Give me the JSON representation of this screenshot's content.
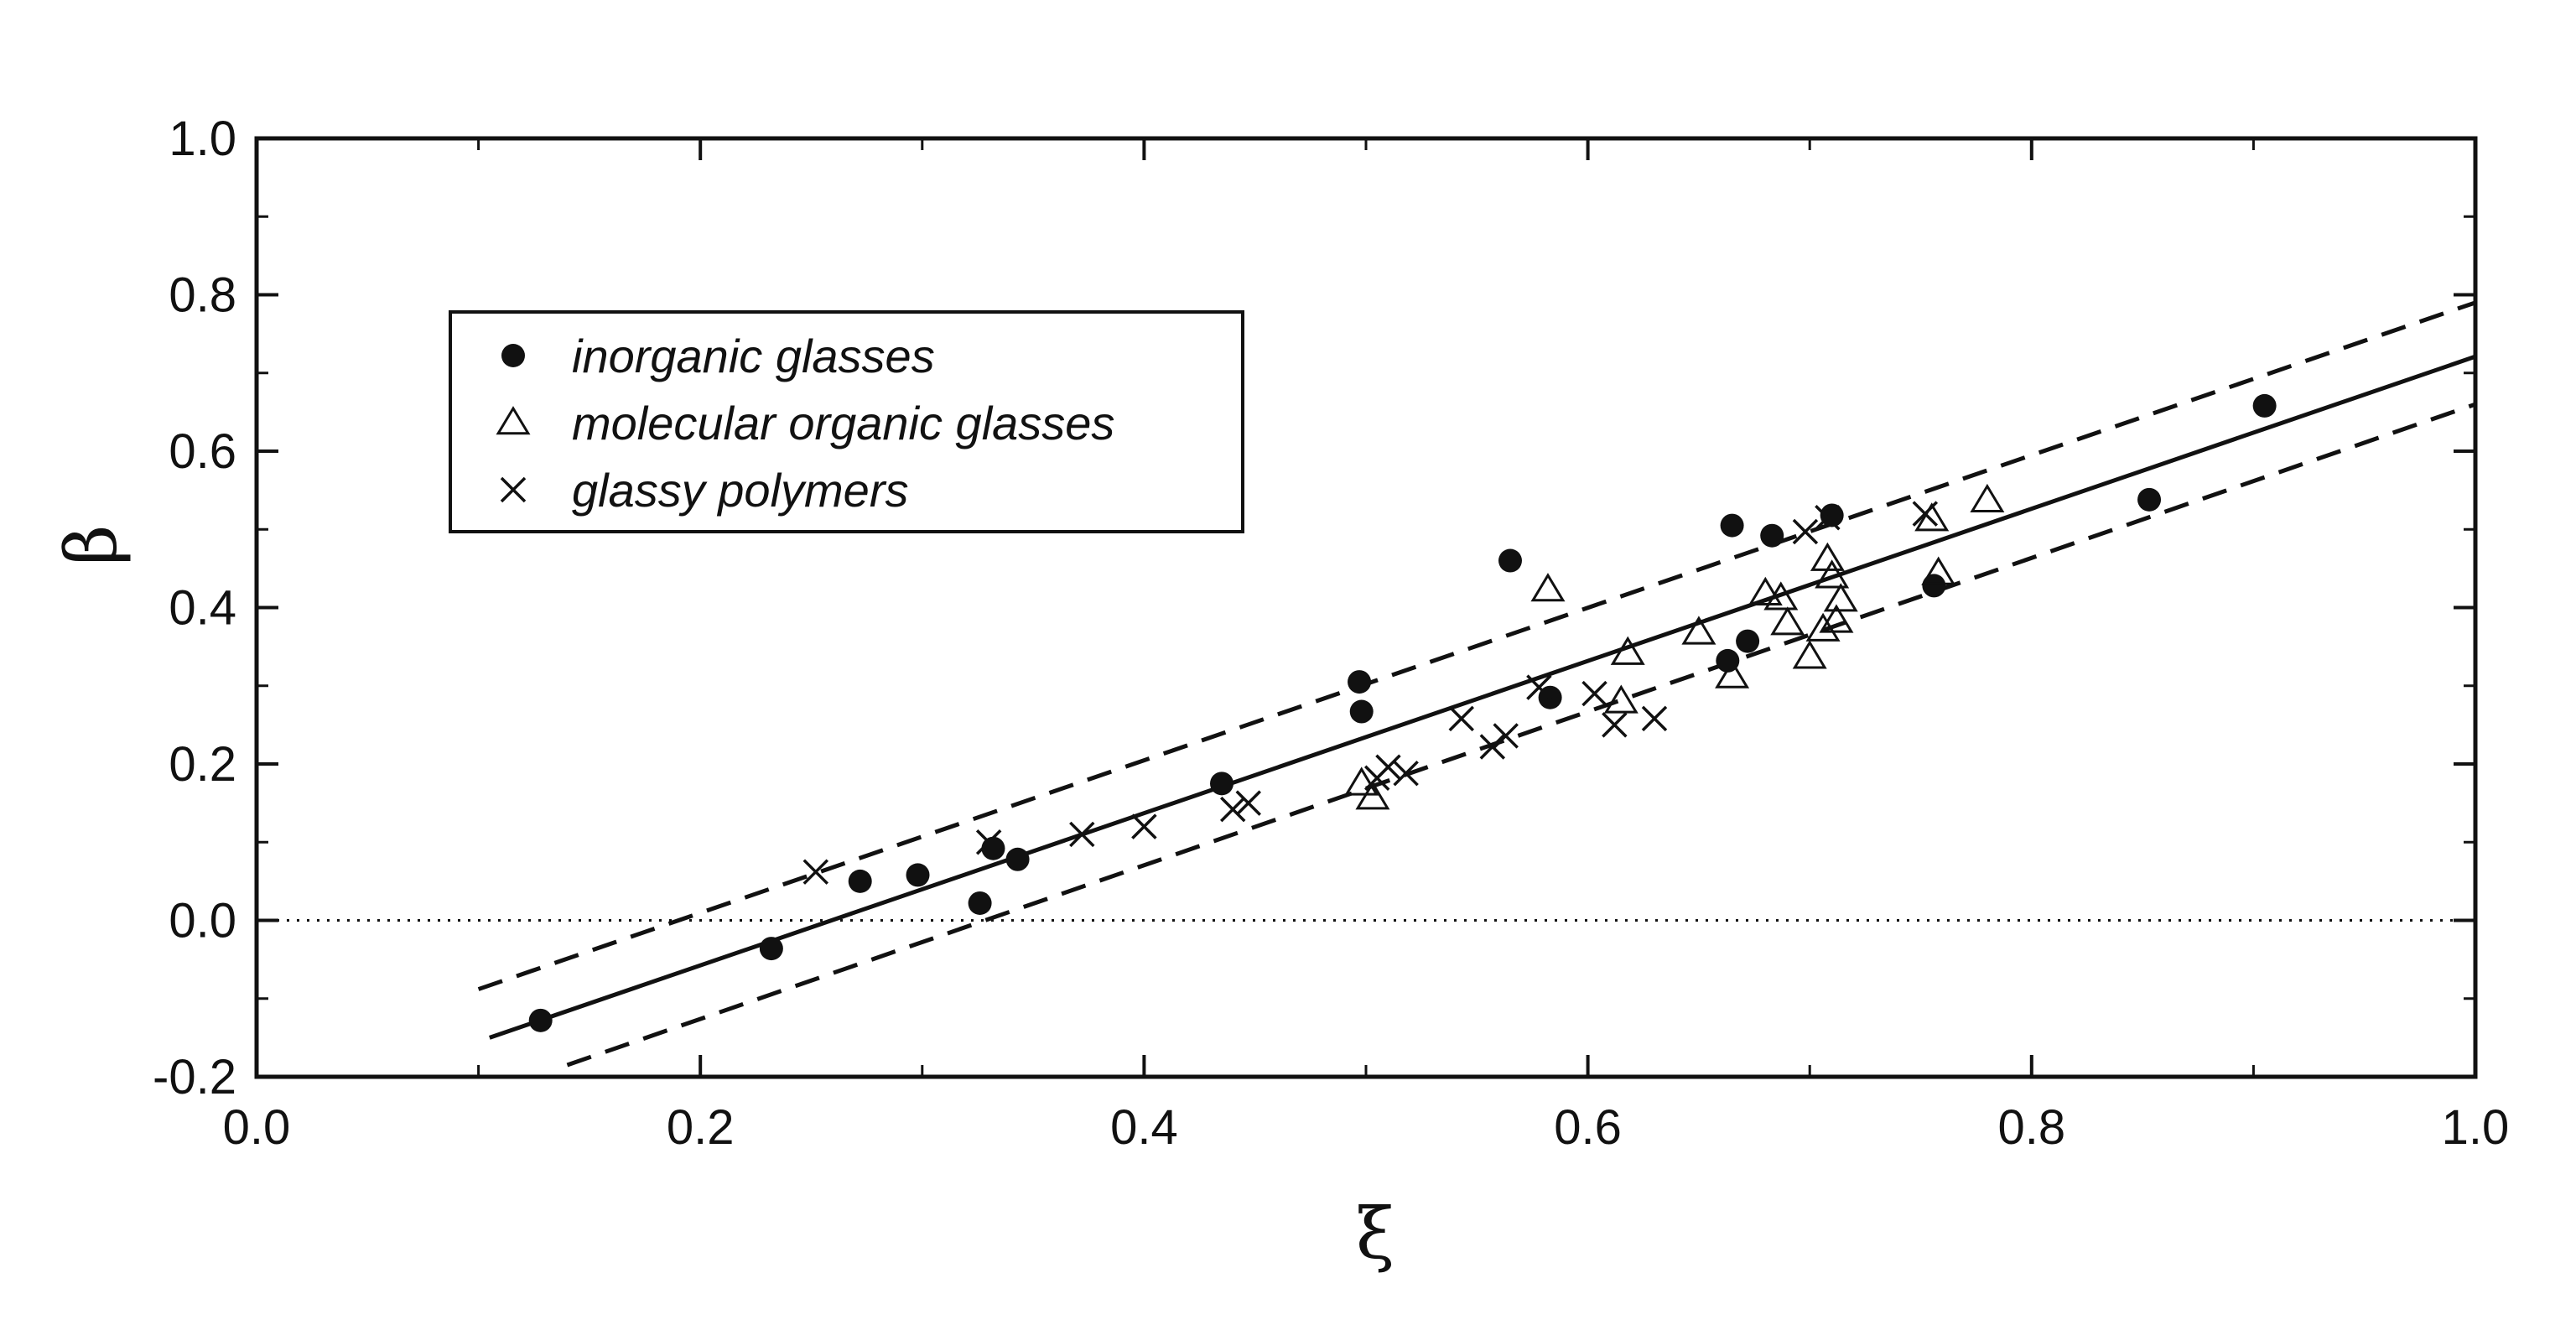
{
  "chart_data": {
    "type": "scatter",
    "title": "",
    "xlabel": "ξ",
    "ylabel": "β",
    "xlim": [
      0.0,
      1.0
    ],
    "ylim": [
      -0.2,
      1.0
    ],
    "x_ticks": [
      0.0,
      0.2,
      0.4,
      0.6,
      0.8,
      1.0
    ],
    "x_tick_labels": [
      "0.0",
      "0.2",
      "0.4",
      "0.6",
      "0.8",
      "1.0"
    ],
    "y_ticks": [
      -0.2,
      0.0,
      0.2,
      0.4,
      0.6,
      0.8,
      1.0
    ],
    "y_tick_labels": [
      "-0.2",
      "0.0",
      "0.2",
      "0.4",
      "0.6",
      "0.8",
      "1.0"
    ],
    "grid": false,
    "legend_position": "upper-left",
    "colors": {
      "ink": "#111111",
      "background": "#ffffff"
    },
    "reference_line": {
      "style": "dotted",
      "y": 0.0
    },
    "series": [
      {
        "name": "inorganic glasses",
        "marker": "filled-circle",
        "points": [
          [
            0.128,
            -0.128
          ],
          [
            0.232,
            -0.036
          ],
          [
            0.272,
            0.05
          ],
          [
            0.298,
            0.058
          ],
          [
            0.326,
            0.022
          ],
          [
            0.332,
            0.092
          ],
          [
            0.343,
            0.078
          ],
          [
            0.435,
            0.175
          ],
          [
            0.497,
            0.305
          ],
          [
            0.498,
            0.267
          ],
          [
            0.565,
            0.46
          ],
          [
            0.583,
            0.285
          ],
          [
            0.663,
            0.332
          ],
          [
            0.665,
            0.505
          ],
          [
            0.672,
            0.357
          ],
          [
            0.683,
            0.492
          ],
          [
            0.71,
            0.518
          ],
          [
            0.756,
            0.428
          ],
          [
            0.853,
            0.538
          ],
          [
            0.905,
            0.658
          ]
        ]
      },
      {
        "name": "molecular organic glasses",
        "marker": "open-triangle",
        "points": [
          [
            0.498,
            0.175
          ],
          [
            0.503,
            0.157
          ],
          [
            0.582,
            0.423
          ],
          [
            0.615,
            0.28
          ],
          [
            0.618,
            0.342
          ],
          [
            0.65,
            0.368
          ],
          [
            0.665,
            0.312
          ],
          [
            0.68,
            0.418
          ],
          [
            0.687,
            0.412
          ],
          [
            0.69,
            0.38
          ],
          [
            0.7,
            0.337
          ],
          [
            0.706,
            0.372
          ],
          [
            0.708,
            0.462
          ],
          [
            0.71,
            0.44
          ],
          [
            0.712,
            0.383
          ],
          [
            0.714,
            0.41
          ],
          [
            0.755,
            0.513
          ],
          [
            0.758,
            0.444
          ],
          [
            0.78,
            0.537
          ]
        ]
      },
      {
        "name": "glassy polymers",
        "marker": "cross",
        "points": [
          [
            0.252,
            0.062
          ],
          [
            0.33,
            0.1
          ],
          [
            0.372,
            0.11
          ],
          [
            0.4,
            0.12
          ],
          [
            0.44,
            0.142
          ],
          [
            0.447,
            0.15
          ],
          [
            0.505,
            0.182
          ],
          [
            0.51,
            0.196
          ],
          [
            0.518,
            0.188
          ],
          [
            0.543,
            0.258
          ],
          [
            0.557,
            0.222
          ],
          [
            0.563,
            0.236
          ],
          [
            0.578,
            0.298
          ],
          [
            0.603,
            0.29
          ],
          [
            0.612,
            0.25
          ],
          [
            0.63,
            0.258
          ],
          [
            0.698,
            0.497
          ],
          [
            0.708,
            0.515
          ],
          [
            0.752,
            0.52
          ]
        ]
      }
    ],
    "fit_lines": [
      {
        "style": "solid",
        "points": [
          [
            0.105,
            -0.15
          ],
          [
            1.0,
            0.721
          ]
        ]
      },
      {
        "style": "dashed",
        "points": [
          [
            0.1,
            -0.088
          ],
          [
            1.0,
            0.79
          ]
        ]
      },
      {
        "style": "dashed",
        "points": [
          [
            0.14,
            -0.185
          ],
          [
            1.0,
            0.66
          ]
        ]
      }
    ]
  }
}
